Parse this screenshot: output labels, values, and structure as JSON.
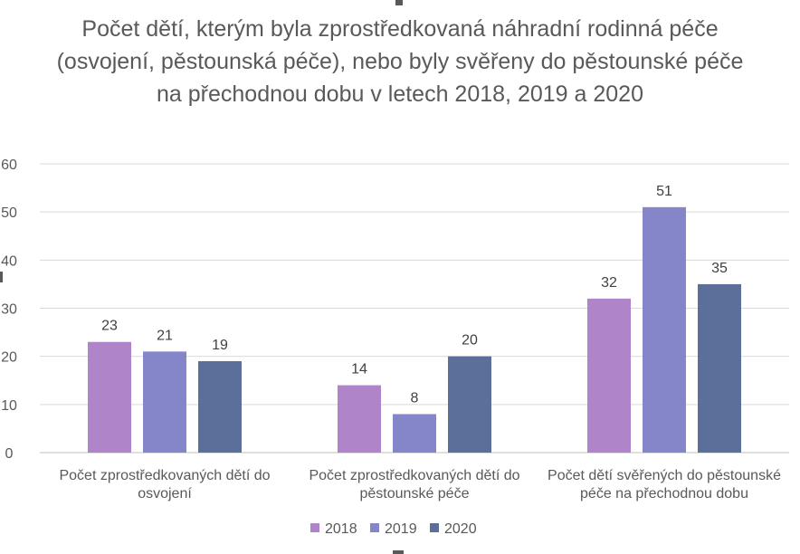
{
  "chart_data": {
    "type": "bar",
    "title": "Počet dětí, kterým byla zprostředkovaná náhradní rodinná péče (osvojení, pěstounská péče), nebo byly svěřeny do pěstounské péče na přechodnou dobu v letech 2018, 2019 a 2020",
    "categories": [
      [
        "Počet zprostředkovaných dětí do",
        "osvojení"
      ],
      [
        "Počet zprostředkovaných dětí do",
        "pěstounské péče"
      ],
      [
        "Počet dětí svěřených do pěstounské",
        "péče na přechodnou dobu"
      ]
    ],
    "series": [
      {
        "name": "2018",
        "color": "#b084c8",
        "values": [
          23,
          14,
          32
        ]
      },
      {
        "name": "2019",
        "color": "#8585c9",
        "values": [
          21,
          8,
          51
        ]
      },
      {
        "name": "2020",
        "color": "#5b6f9a",
        "values": [
          19,
          20,
          35
        ]
      }
    ],
    "ylim": [
      0,
      60
    ],
    "yticks": [
      0,
      10,
      20,
      30,
      40,
      50,
      60
    ],
    "grid": true,
    "legend": "bottom",
    "data_labels": true
  }
}
